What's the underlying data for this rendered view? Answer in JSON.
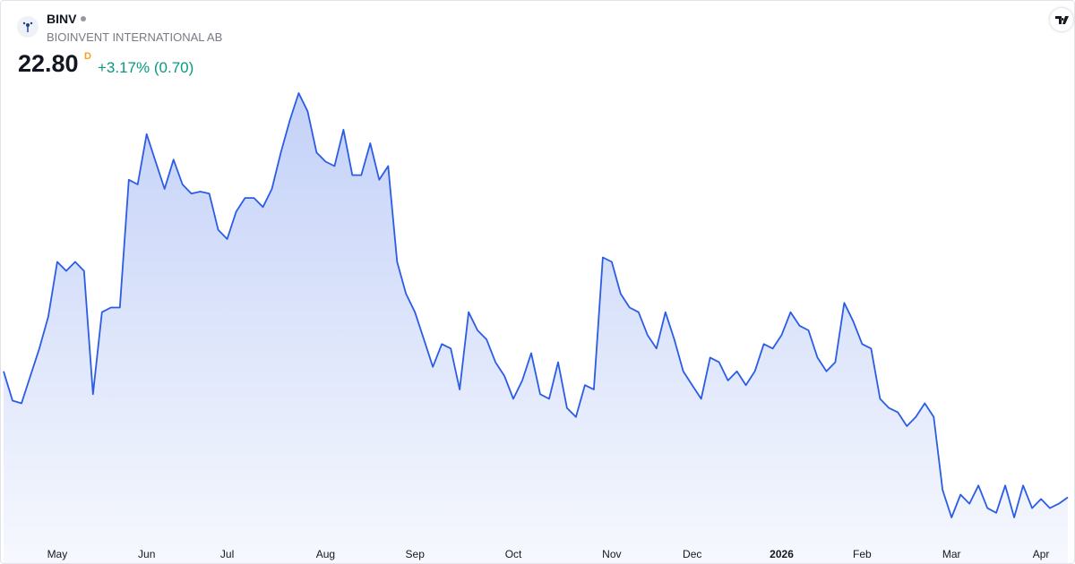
{
  "header": {
    "symbol": "BINV",
    "company": "BIOINVENT INTERNATIONAL AB",
    "price": "22.80",
    "flag": "D",
    "change": "+3.17% (0.70)"
  },
  "chart_data": {
    "type": "line",
    "color": "#2b5ce6",
    "categories": [
      null,
      null,
      null,
      null,
      null,
      null,
      "May",
      null,
      null,
      null,
      null,
      null,
      null,
      null,
      null,
      null,
      "Jun",
      null,
      null,
      null,
      null,
      null,
      null,
      null,
      null,
      "Jul",
      null,
      null,
      null,
      null,
      null,
      null,
      null,
      null,
      null,
      null,
      "Aug",
      null,
      null,
      null,
      null,
      null,
      null,
      null,
      null,
      null,
      "Sep",
      null,
      null,
      null,
      null,
      null,
      null,
      null,
      null,
      null,
      null,
      "Oct",
      null,
      null,
      null,
      null,
      null,
      null,
      null,
      null,
      null,
      null,
      "Nov",
      null,
      null,
      null,
      null,
      null,
      null,
      null,
      null,
      "Dec",
      null,
      null,
      null,
      null,
      null,
      null,
      null,
      null,
      null,
      "2026",
      null,
      null,
      null,
      null,
      null,
      null,
      null,
      null,
      "Feb",
      null,
      null,
      null,
      null,
      null,
      null,
      null,
      null,
      null,
      "Mar",
      null,
      null,
      null,
      null,
      null,
      null,
      null,
      null,
      null,
      "Apr",
      null,
      null,
      null
    ],
    "values": [
      28.48,
      27.16,
      27.04,
      28.27,
      29.51,
      30.95,
      33.42,
      33.01,
      33.42,
      33.01,
      27.45,
      31.15,
      31.36,
      31.36,
      37.12,
      36.91,
      39.18,
      37.94,
      36.71,
      38.03,
      36.91,
      36.5,
      36.59,
      36.5,
      34.86,
      34.45,
      35.68,
      36.3,
      36.3,
      35.89,
      36.71,
      38.35,
      39.8,
      41.03,
      40.21,
      38.35,
      37.94,
      37.74,
      39.38,
      37.33,
      37.33,
      38.77,
      37.12,
      37.74,
      33.42,
      31.98,
      31.15,
      29.92,
      28.68,
      29.71,
      29.51,
      27.66,
      31.15,
      30.33,
      29.92,
      28.89,
      28.27,
      27.24,
      28.07,
      29.3,
      27.45,
      27.24,
      28.89,
      26.83,
      26.42,
      27.86,
      27.66,
      33.62,
      33.42,
      31.98,
      31.36,
      31.15,
      30.12,
      29.51,
      31.15,
      29.92,
      28.48,
      27.86,
      27.24,
      29.1,
      28.89,
      28.07,
      28.48,
      27.86,
      28.48,
      29.71,
      29.51,
      30.12,
      31.15,
      30.54,
      30.33,
      29.1,
      28.48,
      28.89,
      31.57,
      30.74,
      29.71,
      29.51,
      27.24,
      26.83,
      26.63,
      26.01,
      26.42,
      27.04,
      26.42,
      23.13,
      21.89,
      22.92,
      22.51,
      23.33,
      22.31,
      22.1,
      23.33,
      21.89,
      23.33,
      22.31,
      22.72,
      22.31,
      22.51,
      22.8
    ]
  }
}
